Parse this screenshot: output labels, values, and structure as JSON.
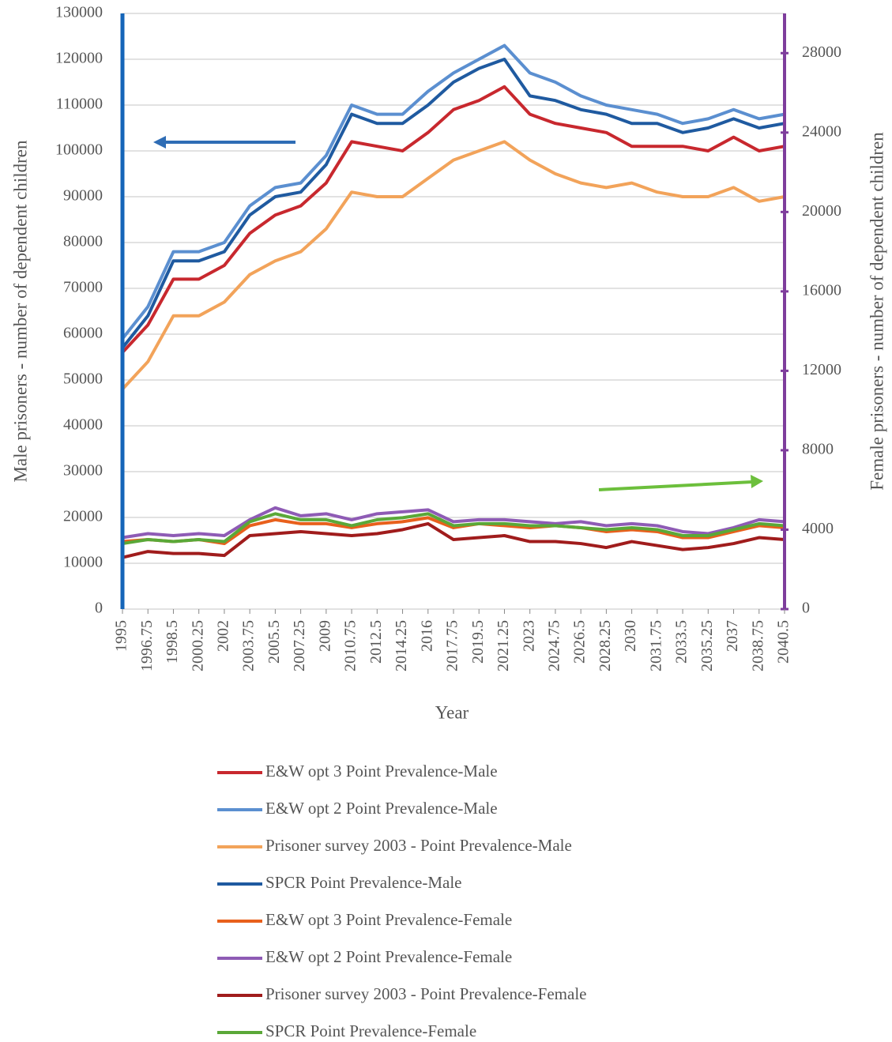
{
  "chart_data": {
    "type": "line",
    "x_label": "Year",
    "y_label": "Male prisoners - number of dependent children",
    "y2_label": "Female prisoners - number of dependent children",
    "x": [
      1995,
      1996.75,
      1998.5,
      2000.25,
      2002,
      2003.75,
      2005.5,
      2007.25,
      2009,
      2010.75,
      2012.5,
      2014.25,
      2016,
      2017.75,
      2019.5,
      2021.25,
      2023,
      2024.75,
      2026.5,
      2028.25,
      2030,
      2031.75,
      2033.5,
      2035.25,
      2037,
      2038.75,
      2040.5
    ],
    "xlim": [
      1995,
      2040.5
    ],
    "xticks": [
      1995,
      1996.75,
      1998.5,
      2000.25,
      2002,
      2003.75,
      2005.5,
      2007.25,
      2009,
      2010.75,
      2012.5,
      2014.25,
      2016,
      2017.75,
      2019.5,
      2021.25,
      2023,
      2024.75,
      2026.5,
      2028.25,
      2030,
      2031.75,
      2033.5,
      2035.25,
      2037,
      2038.75,
      2040.5
    ],
    "ylim": [
      0,
      130000
    ],
    "yticks": [
      0,
      10000,
      20000,
      30000,
      40000,
      50000,
      60000,
      70000,
      80000,
      90000,
      100000,
      110000,
      120000,
      130000
    ],
    "y2lim": [
      0,
      30000
    ],
    "y2ticks": [
      0,
      4000,
      8000,
      12000,
      16000,
      20000,
      24000,
      28000
    ],
    "grid": true,
    "legend": "bottom",
    "series": [
      {
        "name": "E&W opt 3 Point Prevalence-Male",
        "color": "#c8282e",
        "values": [
          56000,
          62000,
          72000,
          72000,
          75000,
          82000,
          86000,
          88000,
          93000,
          102000,
          101000,
          100000,
          104000,
          109000,
          111000,
          114000,
          108000,
          106000,
          105000,
          104000,
          101000,
          101000,
          101000,
          100000,
          103000,
          100000,
          101000
        ]
      },
      {
        "name": "E&W opt 2 Point Prevalence-Male",
        "color": "#5b8fd0",
        "values": [
          59000,
          66000,
          78000,
          78000,
          80000,
          88000,
          92000,
          93000,
          99000,
          110000,
          108000,
          108000,
          113000,
          117000,
          120000,
          123000,
          117000,
          115000,
          112000,
          110000,
          109000,
          108000,
          106000,
          107000,
          109000,
          107000,
          108000
        ]
      },
      {
        "name": "Prisoner survey 2003 - Point Prevalence-Male",
        "color": "#f2a35a",
        "values": [
          48000,
          54000,
          64000,
          64000,
          67000,
          73000,
          76000,
          78000,
          83000,
          91000,
          90000,
          90000,
          94000,
          98000,
          100000,
          102000,
          98000,
          95000,
          93000,
          92000,
          93000,
          91000,
          90000,
          90000,
          92000,
          89000,
          90000
        ]
      },
      {
        "name": "SPCR Point Prevalence-Male",
        "color": "#1f5aa0",
        "values": [
          57000,
          64000,
          76000,
          76000,
          78000,
          86000,
          90000,
          91000,
          97000,
          108000,
          106000,
          106000,
          110000,
          115000,
          118000,
          120000,
          112000,
          111000,
          109000,
          108000,
          106000,
          106000,
          104000,
          105000,
          107000,
          105000,
          106000
        ]
      },
      {
        "name": "E&W opt 3 Point Prevalence-Female",
        "color": "#e8601c",
        "axis": "y2",
        "values": [
          3400,
          3500,
          3400,
          3500,
          3300,
          4200,
          4500,
          4300,
          4300,
          4100,
          4300,
          4400,
          4600,
          4100,
          4300,
          4200,
          4100,
          4200,
          4100,
          3900,
          4000,
          3900,
          3600,
          3600,
          3900,
          4200,
          4100
        ]
      },
      {
        "name": "E&W opt 2 Point Prevalence-Female",
        "color": "#8e5bb5",
        "axis": "y2",
        "values": [
          3600,
          3800,
          3700,
          3800,
          3700,
          4500,
          5100,
          4700,
          4800,
          4500,
          4800,
          4900,
          5000,
          4400,
          4500,
          4500,
          4400,
          4300,
          4400,
          4200,
          4300,
          4200,
          3900,
          3800,
          4100,
          4500,
          4400
        ]
      },
      {
        "name": "Prisoner survey 2003 - Point Prevalence-Female",
        "color": "#a01c1c",
        "axis": "y2",
        "values": [
          2600,
          2900,
          2800,
          2800,
          2700,
          3700,
          3800,
          3900,
          3800,
          3700,
          3800,
          4000,
          4300,
          3500,
          3600,
          3700,
          3400,
          3400,
          3300,
          3100,
          3400,
          3200,
          3000,
          3100,
          3300,
          3600,
          3500
        ]
      },
      {
        "name": "SPCR Point Prevalence-Female",
        "color": "#5aa838",
        "axis": "y2",
        "values": [
          3300,
          3500,
          3400,
          3500,
          3400,
          4400,
          4800,
          4500,
          4500,
          4200,
          4500,
          4600,
          4800,
          4200,
          4300,
          4300,
          4200,
          4200,
          4100,
          4000,
          4100,
          4000,
          3700,
          3700,
          4000,
          4300,
          4200
        ]
      }
    ]
  }
}
